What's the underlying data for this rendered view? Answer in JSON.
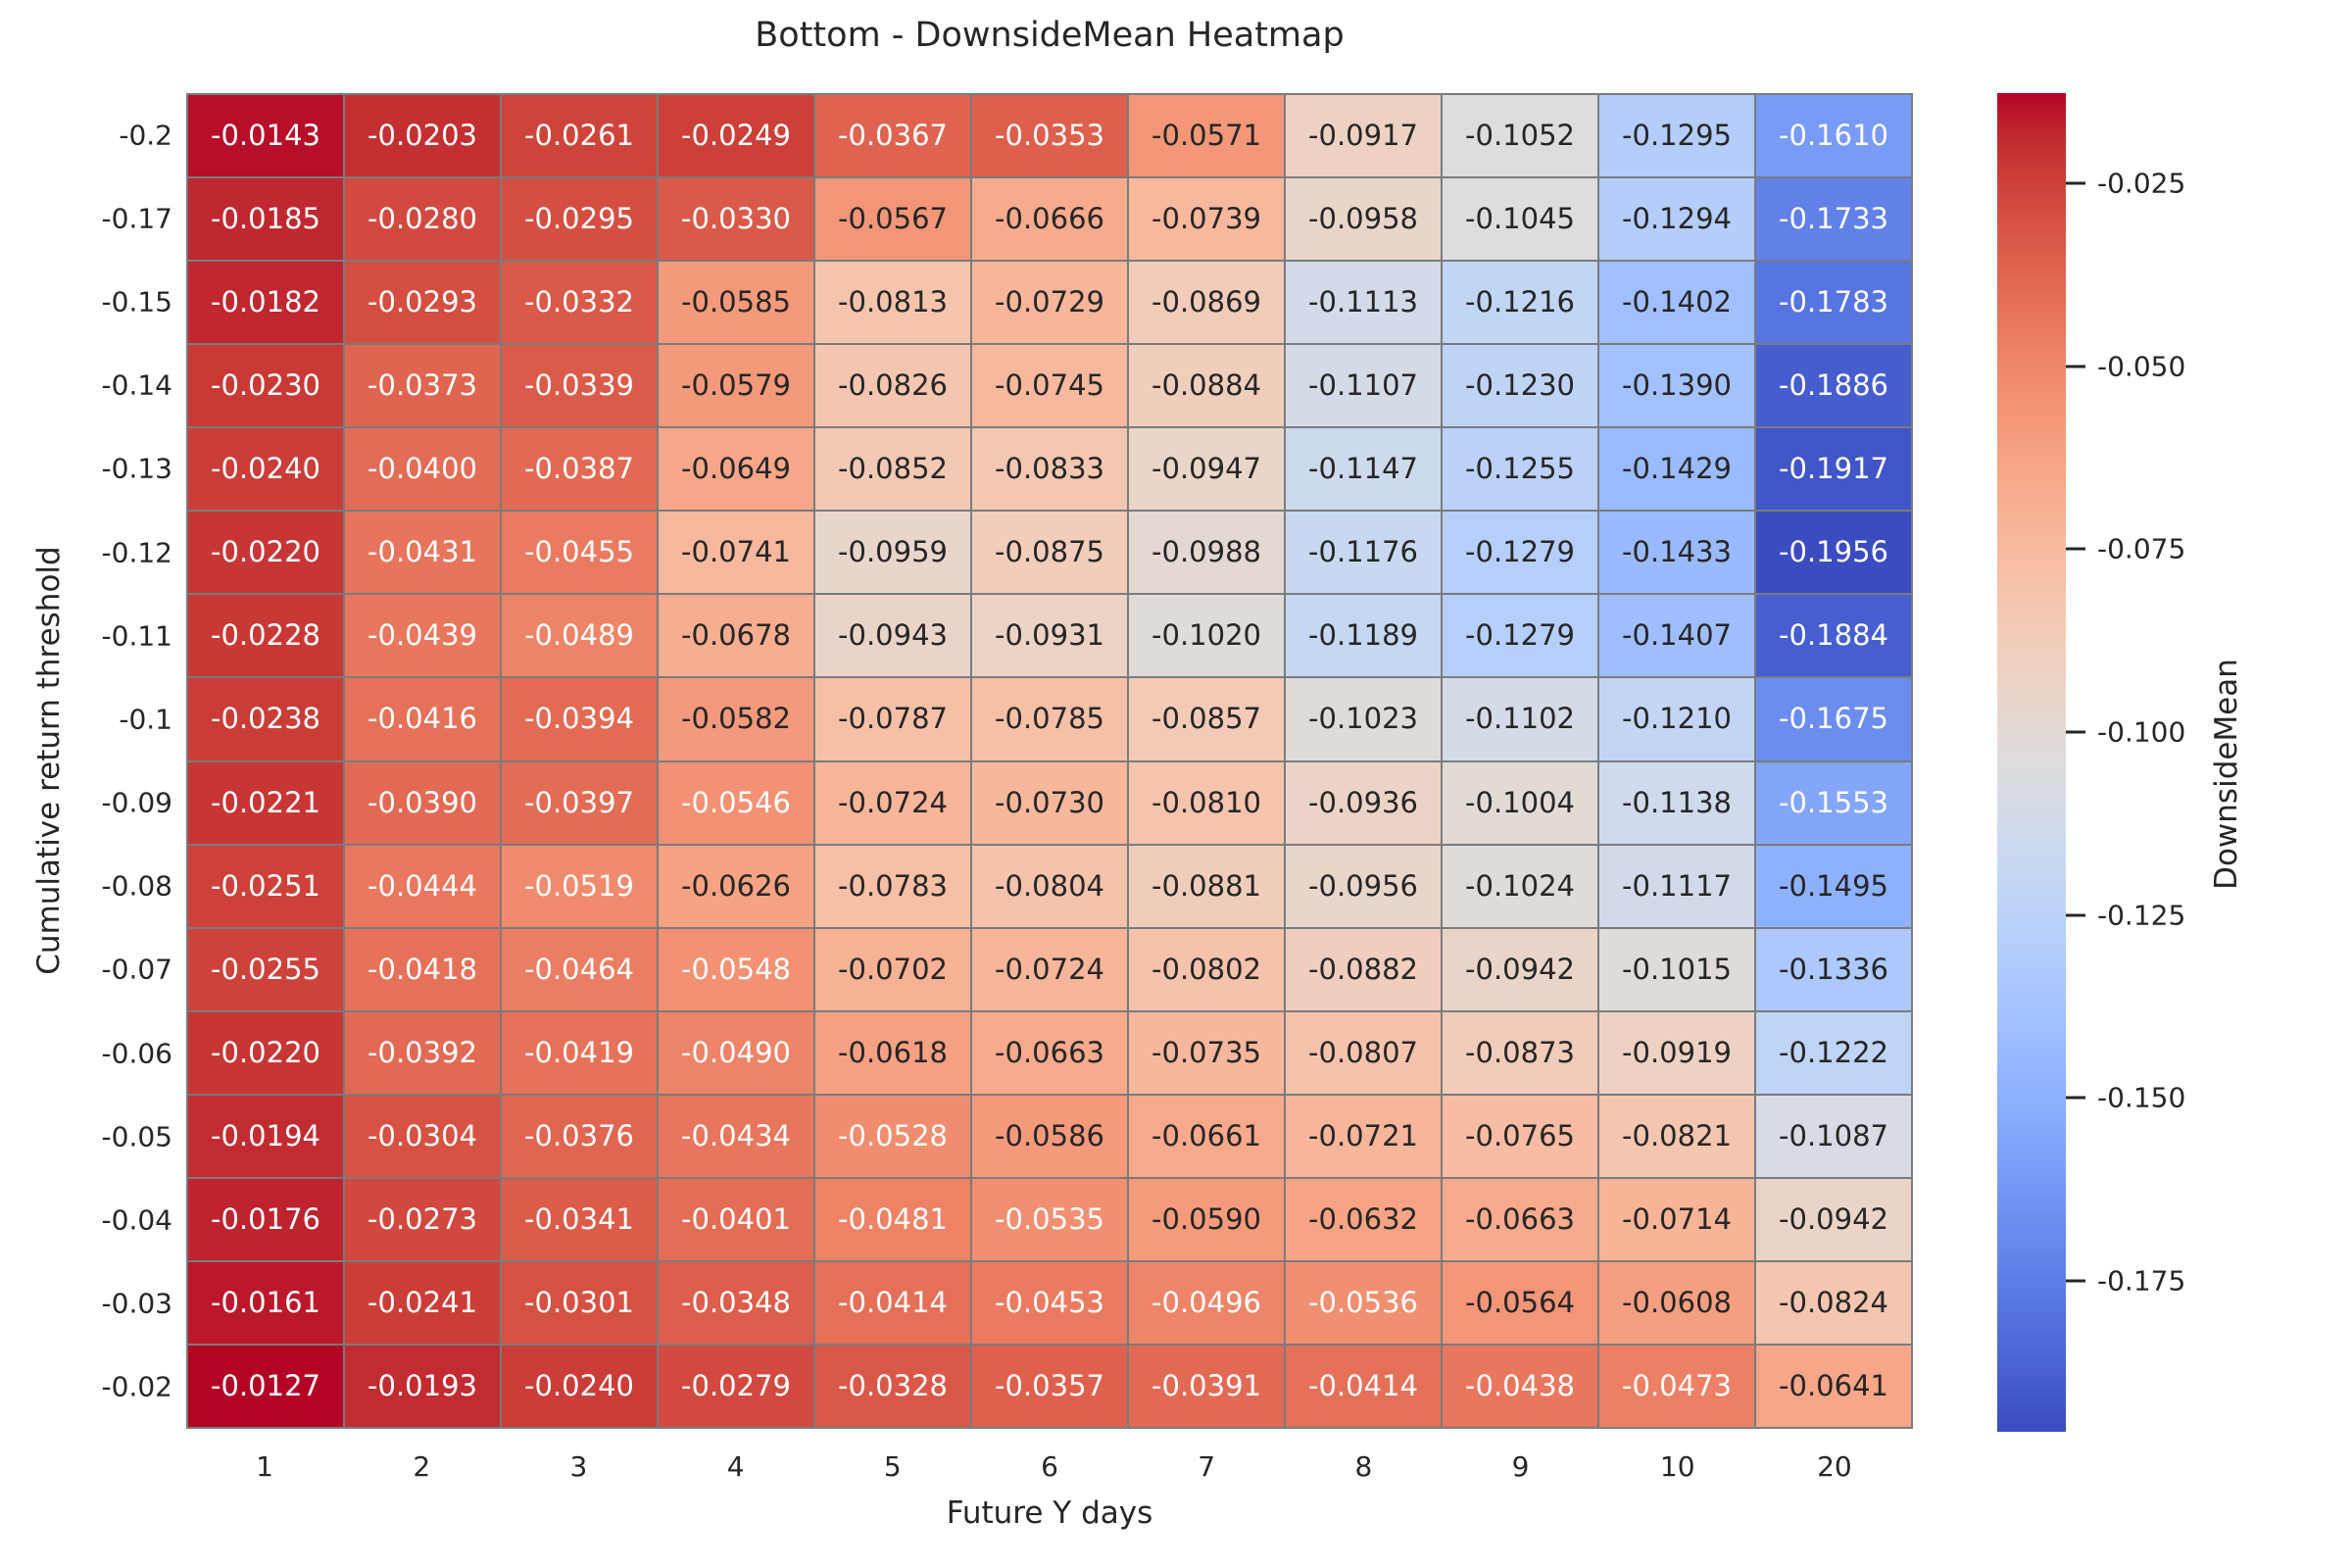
{
  "title": "Bottom - DownsideMean Heatmap",
  "chart_data": {
    "type": "heatmap",
    "title": "Bottom - DownsideMean Heatmap",
    "xlabel": "Future Y days",
    "ylabel": "Cumulative return threshold",
    "x_categories": [
      "1",
      "2",
      "3",
      "4",
      "5",
      "6",
      "7",
      "8",
      "9",
      "10",
      "20"
    ],
    "y_categories": [
      "-0.2",
      "-0.17",
      "-0.15",
      "-0.14",
      "-0.13",
      "-0.12",
      "-0.11",
      "-0.1",
      "-0.09",
      "-0.08",
      "-0.07",
      "-0.06",
      "-0.05",
      "-0.04",
      "-0.03",
      "-0.02"
    ],
    "values": [
      [
        -0.0143,
        -0.0203,
        -0.0261,
        -0.0249,
        -0.0367,
        -0.0353,
        -0.0571,
        -0.0917,
        -0.1052,
        -0.1295,
        -0.161
      ],
      [
        -0.0185,
        -0.028,
        -0.0295,
        -0.033,
        -0.0567,
        -0.0666,
        -0.0739,
        -0.0958,
        -0.1045,
        -0.1294,
        -0.1733
      ],
      [
        -0.0182,
        -0.0293,
        -0.0332,
        -0.0585,
        -0.0813,
        -0.0729,
        -0.0869,
        -0.1113,
        -0.1216,
        -0.1402,
        -0.1783
      ],
      [
        -0.023,
        -0.0373,
        -0.0339,
        -0.0579,
        -0.0826,
        -0.0745,
        -0.0884,
        -0.1107,
        -0.123,
        -0.139,
        -0.1886
      ],
      [
        -0.024,
        -0.04,
        -0.0387,
        -0.0649,
        -0.0852,
        -0.0833,
        -0.0947,
        -0.1147,
        -0.1255,
        -0.1429,
        -0.1917
      ],
      [
        -0.022,
        -0.0431,
        -0.0455,
        -0.0741,
        -0.0959,
        -0.0875,
        -0.0988,
        -0.1176,
        -0.1279,
        -0.1433,
        -0.1956
      ],
      [
        -0.0228,
        -0.0439,
        -0.0489,
        -0.0678,
        -0.0943,
        -0.0931,
        -0.102,
        -0.1189,
        -0.1279,
        -0.1407,
        -0.1884
      ],
      [
        -0.0238,
        -0.0416,
        -0.0394,
        -0.0582,
        -0.0787,
        -0.0785,
        -0.0857,
        -0.1023,
        -0.1102,
        -0.121,
        -0.1675
      ],
      [
        -0.0221,
        -0.039,
        -0.0397,
        -0.0546,
        -0.0724,
        -0.073,
        -0.081,
        -0.0936,
        -0.1004,
        -0.1138,
        -0.1553
      ],
      [
        -0.0251,
        -0.0444,
        -0.0519,
        -0.0626,
        -0.0783,
        -0.0804,
        -0.0881,
        -0.0956,
        -0.1024,
        -0.1117,
        -0.1495
      ],
      [
        -0.0255,
        -0.0418,
        -0.0464,
        -0.0548,
        -0.0702,
        -0.0724,
        -0.0802,
        -0.0882,
        -0.0942,
        -0.1015,
        -0.1336
      ],
      [
        -0.022,
        -0.0392,
        -0.0419,
        -0.049,
        -0.0618,
        -0.0663,
        -0.0735,
        -0.0807,
        -0.0873,
        -0.0919,
        -0.1222
      ],
      [
        -0.0194,
        -0.0304,
        -0.0376,
        -0.0434,
        -0.0528,
        -0.0586,
        -0.0661,
        -0.0721,
        -0.0765,
        -0.0821,
        -0.1087
      ],
      [
        -0.0176,
        -0.0273,
        -0.0341,
        -0.0401,
        -0.0481,
        -0.0535,
        -0.059,
        -0.0632,
        -0.0663,
        -0.0714,
        -0.0942
      ],
      [
        -0.0161,
        -0.0241,
        -0.0301,
        -0.0348,
        -0.0414,
        -0.0453,
        -0.0496,
        -0.0536,
        -0.0564,
        -0.0608,
        -0.0824
      ],
      [
        -0.0127,
        -0.0193,
        -0.024,
        -0.0279,
        -0.0328,
        -0.0357,
        -0.0391,
        -0.0414,
        -0.0438,
        -0.0473,
        -0.0641
      ]
    ],
    "value_decimals": 4,
    "colormap": "coolwarm",
    "vmin": -0.1956,
    "vmax": -0.0127,
    "grid_line_color": "#787c7e",
    "annotation_text_dark": "#262626",
    "annotation_text_light": "#ffffff",
    "colorbar": {
      "label": "DownsideMean",
      "ticks": [
        -0.025,
        -0.05,
        -0.075,
        -0.1,
        -0.125,
        -0.15,
        -0.175
      ],
      "tick_labels": [
        "-0.025",
        "-0.050",
        "-0.075",
        "-0.100",
        "-0.125",
        "-0.150",
        "-0.175"
      ]
    }
  }
}
